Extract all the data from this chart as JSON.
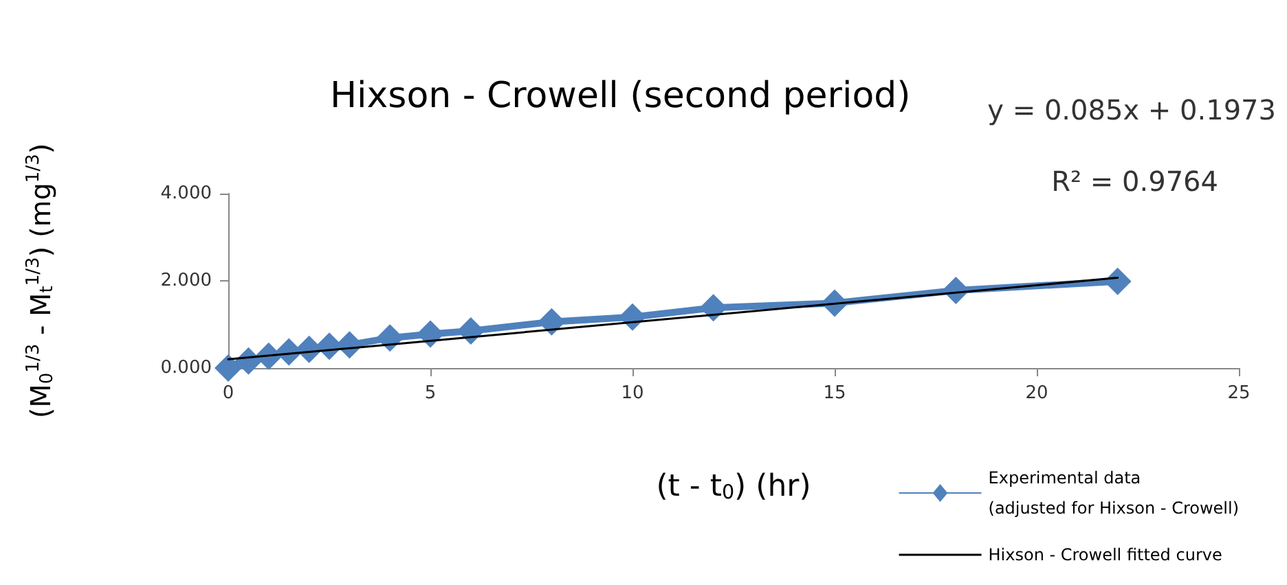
{
  "chart_data": {
    "type": "line",
    "title": "Hixson - Crowell (second period)",
    "xlabel": "(t - t$_{0}$) (hr)",
    "ylabel": "(M$_{0}$$^{1/3}$ - M$_{t}$$^{1/3}$) (mg$^{1/3}$)",
    "annotations": [
      "y = 0.085x + 0.1973",
      "R² = 0.9764"
    ],
    "series": [
      {
        "name": "Experimental data\n(adjusted for Hixson - Crowell)",
        "color": "#4f81bd",
        "marker": "diamond",
        "x": [
          0,
          0.5,
          1,
          1.5,
          2,
          2.5,
          3,
          4,
          5,
          6,
          8,
          10,
          12,
          15,
          18,
          22
        ],
        "values": [
          0,
          0.16,
          0.27,
          0.37,
          0.43,
          0.5,
          0.53,
          0.69,
          0.78,
          0.85,
          1.06,
          1.17,
          1.38,
          1.49,
          1.78,
          1.99
        ]
      },
      {
        "name": "Hixson - Crowell fitted curve",
        "color": "#000000",
        "marker": "none",
        "x": [
          0,
          22
        ],
        "values": [
          0.2,
          2.07
        ]
      }
    ],
    "xlim": [
      0,
      25
    ],
    "xticks": [
      0,
      5,
      10,
      15,
      20,
      25
    ],
    "ylim": [
      0,
      4
    ],
    "yticks": [
      {
        "value": 0,
        "label": "0.000"
      },
      {
        "value": 2,
        "label": "2.000"
      },
      {
        "value": 4,
        "label": "4.000"
      }
    ],
    "grid": false,
    "legend": "bottom right"
  }
}
